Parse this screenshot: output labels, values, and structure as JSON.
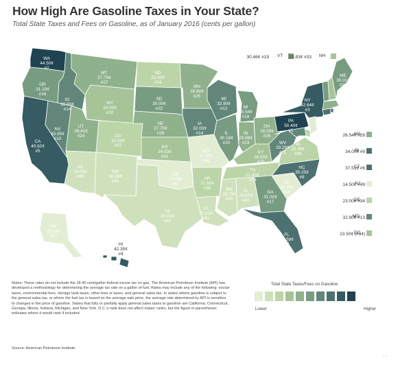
{
  "title": "How High Are Gasoline Taxes in Your State?",
  "subtitle": "Total State Taxes and Fees on Gasoline, as of January 2016 (cents per gallon)",
  "colors": {
    "c1": "#e2edd4",
    "c2": "#cfe1bc",
    "c3": "#bcd5a8",
    "c4": "#a6c498",
    "c5": "#8fb18c",
    "c6": "#789c82",
    "c7": "#62877a",
    "c8": "#4c7170",
    "c9": "#365b62",
    "c10": "#1f4350"
  },
  "states": {
    "WA": {
      "name": "WA",
      "value": "44.50¢",
      "rank": "#2",
      "color": "c10"
    },
    "OR": {
      "name": "OR",
      "value": "31.10¢",
      "rank": "#16",
      "color": "c6"
    },
    "CA": {
      "name": "CA",
      "value": "40.62¢",
      "rank": "#5",
      "color": "c9"
    },
    "NV": {
      "name": "NV",
      "value": "33.85¢",
      "rank": "#10",
      "color": "c7"
    },
    "ID": {
      "name": "ID",
      "value": "32.00¢",
      "rank": "#14",
      "color": "c7"
    },
    "MT": {
      "name": "MT",
      "value": "27.75¢",
      "rank": "#27",
      "color": "c5"
    },
    "WY": {
      "name": "WY",
      "value": "24.00¢",
      "rank": "#32",
      "color": "c4"
    },
    "UT": {
      "name": "UT",
      "value": "29.41¢",
      "rank": "#24",
      "color": "c5"
    },
    "AZ": {
      "name": "AZ",
      "value": "19.00¢",
      "rank": "#43",
      "color": "c2"
    },
    "CO": {
      "name": "CO",
      "value": "22.00¢",
      "rank": "#37",
      "color": "c3"
    },
    "NM": {
      "name": "NM",
      "value": "18.88¢",
      "rank": "#44",
      "color": "c2"
    },
    "ND": {
      "name": "ND",
      "value": "23.00¢",
      "rank": "#34",
      "color": "c3"
    },
    "SD": {
      "name": "SD",
      "value": "30.00¢",
      "rank": "#22",
      "color": "c6"
    },
    "NE": {
      "name": "NE",
      "value": "27.70¢",
      "rank": "#28",
      "color": "c5"
    },
    "KS": {
      "name": "KS",
      "value": "24.03¢",
      "rank": "#31",
      "color": "c4"
    },
    "OK": {
      "name": "OK",
      "value": "17.00¢",
      "rank": "#47",
      "color": "c1"
    },
    "TX": {
      "name": "TX",
      "value": "20.00¢",
      "rank": "#42",
      "color": "c2"
    },
    "MN": {
      "name": "MN",
      "value": "28.60¢",
      "rank": "#25",
      "color": "c5"
    },
    "IA": {
      "name": "IA",
      "value": "32.00¢",
      "rank": "#14",
      "color": "c7"
    },
    "MO": {
      "name": "MO",
      "value": "17.30¢",
      "rank": "#46",
      "color": "c1"
    },
    "AR": {
      "name": "AR",
      "value": "21.80¢",
      "rank": "#38",
      "color": "c3"
    },
    "LA": {
      "name": "LA",
      "value": "20.01¢",
      "rank": "#41",
      "color": "c2"
    },
    "WI": {
      "name": "WI",
      "value": "32.90¢",
      "rank": "#12",
      "color": "c7"
    },
    "IL": {
      "name": "IL",
      "value": "30.18¢",
      "rank": "#20",
      "color": "c6"
    },
    "MI": {
      "name": "MI",
      "value": "30.54¢",
      "rank": "#18",
      "color": "c6"
    },
    "IN": {
      "name": "IN",
      "value": "29.88¢",
      "rank": "#23",
      "color": "c5"
    },
    "OH": {
      "name": "OH",
      "value": "28.00¢",
      "rank": "#26",
      "color": "c5"
    },
    "KY": {
      "name": "KY",
      "value": "26.00¢",
      "rank": "#30",
      "color": "c4"
    },
    "TN": {
      "name": "TN",
      "value": "21.40¢",
      "rank": "#39",
      "color": "c3"
    },
    "MS": {
      "name": "MS",
      "value": "18.79¢",
      "rank": "#45",
      "color": "c2"
    },
    "AL": {
      "name": "AL",
      "value": "20.87¢",
      "rank": "#40",
      "color": "c2"
    },
    "GA": {
      "name": "GA",
      "value": "31.02¢",
      "rank": "#17",
      "color": "c6"
    },
    "FL": {
      "name": "FL",
      "value": "36.58¢",
      "rank": "#7",
      "color": "c8"
    },
    "SC": {
      "name": "SC",
      "value": "16.75¢",
      "rank": "#48",
      "color": "c1"
    },
    "NC": {
      "name": "NC",
      "value": "35.25¢",
      "rank": "#8",
      "color": "c8"
    },
    "VA": {
      "name": "VA",
      "value": "22.56¢",
      "rank": "#36",
      "color": "c3"
    },
    "WV": {
      "name": "WV",
      "value": "33.20¢",
      "rank": "#11",
      "color": "c7"
    },
    "PA": {
      "name": "PA",
      "value": "50.40¢",
      "rank": "#1",
      "color": "c10"
    },
    "NY": {
      "name": "NY",
      "value": "42.64¢",
      "rank": "#3",
      "color": "c9"
    },
    "ME": {
      "name": "ME",
      "value": "30.01¢",
      "rank": "#21",
      "color": "c6"
    },
    "AK": {
      "name": "AK",
      "value": "12.25¢",
      "rank": "#50",
      "color": "c1"
    },
    "HI": {
      "name": "HI",
      "value": "42.35¢",
      "rank": "#4",
      "color": "c9"
    }
  },
  "callouts": {
    "VT": {
      "text": "30.46¢ #19",
      "label": "VT",
      "color": "c6"
    },
    "NH": {
      "text": "23.83¢ #33",
      "label": "NH",
      "color": "c4"
    },
    "MA": {
      "text": "26.54¢ #29",
      "label": "MA",
      "color": "c5"
    },
    "RI": {
      "text": "34.00¢ #9",
      "label": "RI",
      "color": "c8"
    },
    "CT": {
      "text": "37.51¢ #6",
      "label": "CT",
      "color": "c8"
    },
    "NJ": {
      "text": "14.50¢ #49",
      "label": "NJ",
      "color": "c1"
    },
    "DE": {
      "text": "23.00¢ #34",
      "label": "DE",
      "color": "c3"
    },
    "MD": {
      "text": "32.60¢ #13",
      "label": "MD",
      "color": "c7"
    },
    "DC": {
      "text": "23.50¢ (#34)",
      "label": "DC",
      "color": "c4"
    }
  },
  "legend": {
    "title": "Total State Taxes/Fees on Gasoline",
    "lower": "Lower",
    "higher": "Higher"
  },
  "notes": "Notes: These rates do not include the 18.40 cent/gallon federal excise tax on gas. The American Petroleum Institute (API) has developed a methodology for determining the average tax rate on a gallon of fuel. Rates may include any of the following: excise taxes, environmental fees, storage tank taxes, other fees or taxes, and general sales tax. In states where gasoline is subject to the general sales tax, or where the fuel tax is based on the average sale price, the average rate determined by API is sensitive to changes in the price of gasoline. States that fully or partially apply general sales taxes to gasoline are California, Connecticut, Georgia, Illinois, Indiana, Michigan, and New York. D.C.'s rank does not affect states' ranks, but the figure in parentheses indicates where it would rank if included.",
  "source": "Source: American Petroleum Institute.",
  "corner_mark": "· ·  "
}
